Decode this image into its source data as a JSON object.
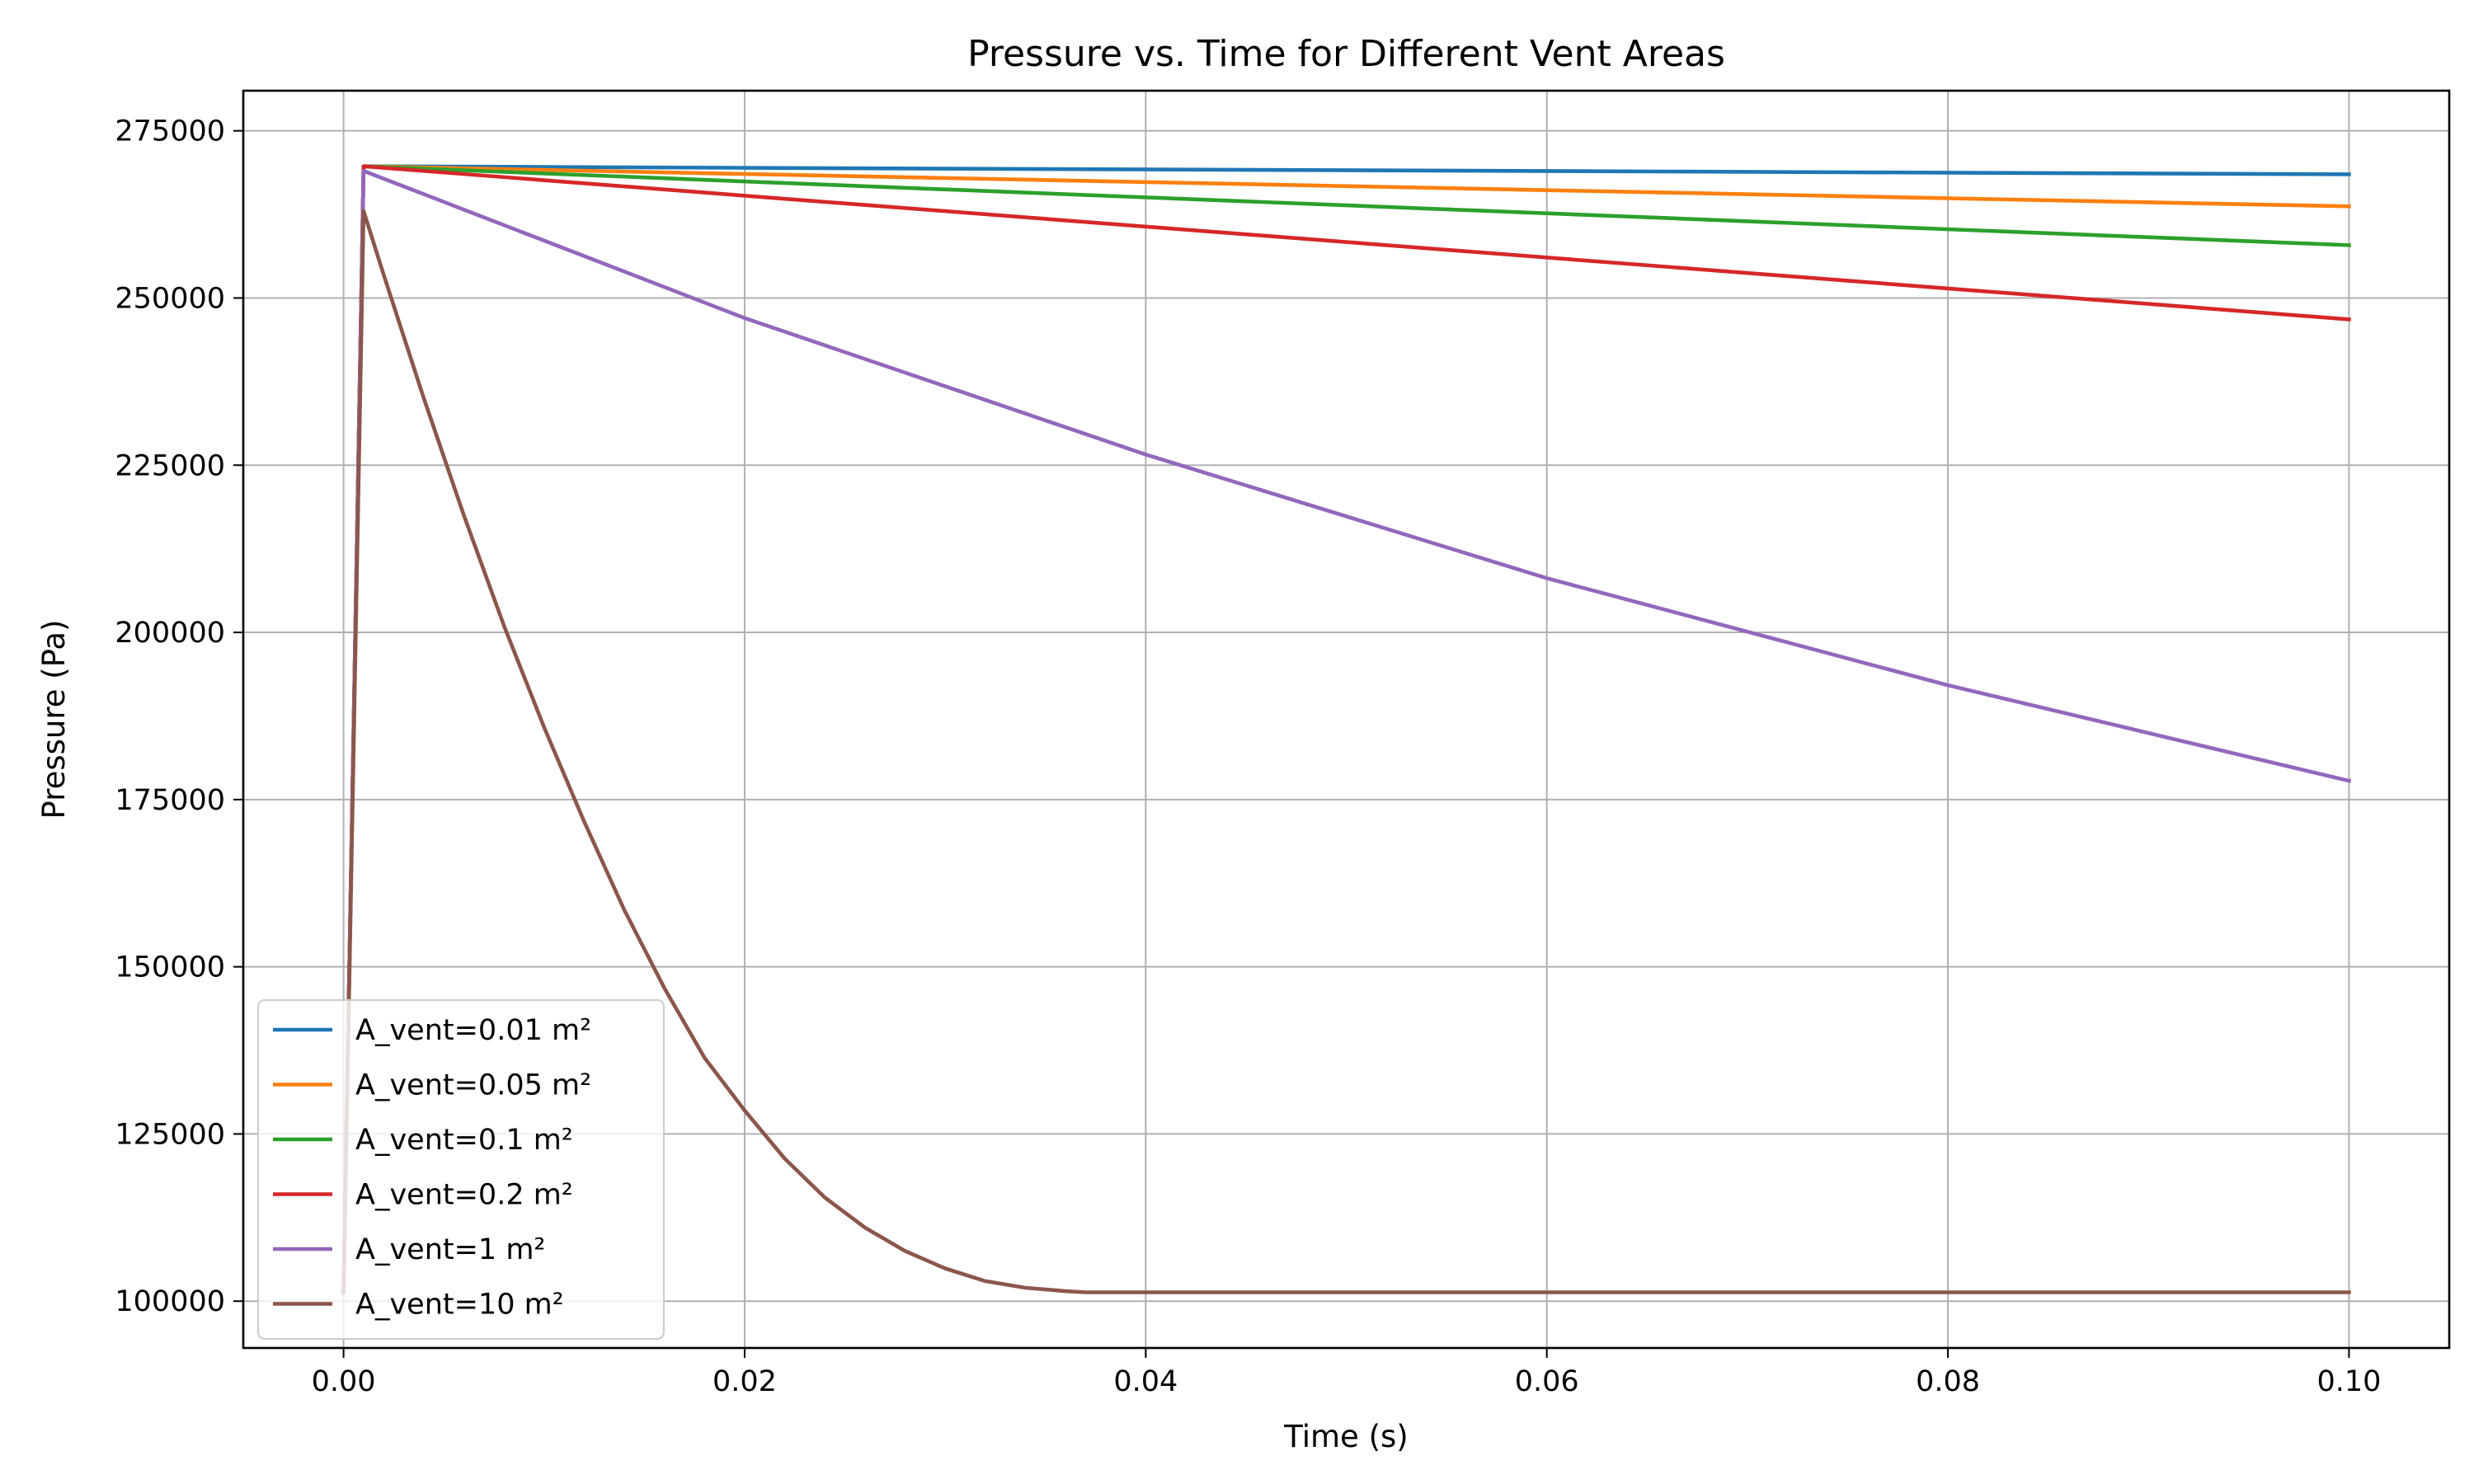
{
  "chart_data": {
    "type": "line",
    "title": "Pressure vs. Time for Different Vent Areas",
    "xlabel": "Time (s)",
    "ylabel": "Pressure (Pa)",
    "xlim": [
      -0.005,
      0.105
    ],
    "ylim": [
      93000,
      281000
    ],
    "xticks": [
      0.0,
      0.02,
      0.04,
      0.06,
      0.08,
      0.1
    ],
    "xtick_labels": [
      "0.00",
      "0.02",
      "0.04",
      "0.06",
      "0.08",
      "0.10"
    ],
    "yticks": [
      100000,
      125000,
      150000,
      175000,
      200000,
      225000,
      250000,
      275000
    ],
    "ytick_labels": [
      "100000",
      "125000",
      "150000",
      "175000",
      "200000",
      "225000",
      "250000",
      "275000"
    ],
    "grid": true,
    "legend_position": "lower-left",
    "series": [
      {
        "name": "A_vent=0.01 m²",
        "color": "#1f77b4",
        "x": [
          0.0,
          0.001,
          0.1
        ],
        "y": [
          101325,
          269700,
          268500
        ]
      },
      {
        "name": "A_vent=0.05 m²",
        "color": "#ff7f0e",
        "x": [
          0.0,
          0.001,
          0.1
        ],
        "y": [
          101325,
          269700,
          263700
        ]
      },
      {
        "name": "A_vent=0.1 m²",
        "color": "#2ca02c",
        "x": [
          0.0,
          0.001,
          0.1
        ],
        "y": [
          101325,
          269700,
          257900
        ]
      },
      {
        "name": "A_vent=0.2 m²",
        "color": "#d62728",
        "x": [
          0.0,
          0.001,
          0.1
        ],
        "y": [
          101325,
          269700,
          246800
        ]
      },
      {
        "name": "A_vent=1 m²",
        "color": "#9467bd",
        "x": [
          0.0,
          0.001,
          0.02,
          0.04,
          0.06,
          0.08,
          0.1
        ],
        "y": [
          101325,
          269000,
          247000,
          226600,
          208100,
          192100,
          177800
        ]
      },
      {
        "name": "A_vent=10 m²",
        "color": "#8c564b",
        "x": [
          0.0,
          0.001,
          0.002,
          0.004,
          0.006,
          0.008,
          0.01,
          0.012,
          0.014,
          0.016,
          0.018,
          0.02,
          0.022,
          0.024,
          0.026,
          0.028,
          0.03,
          0.032,
          0.034,
          0.036,
          0.037,
          0.04,
          0.06,
          0.08,
          0.1
        ],
        "y": [
          101325,
          263000,
          253500,
          235000,
          217500,
          201000,
          185800,
          171700,
          158500,
          146800,
          136400,
          128500,
          121300,
          115500,
          111000,
          107500,
          104900,
          103000,
          102000,
          101500,
          101325,
          101325,
          101325,
          101325,
          101325
        ]
      }
    ]
  }
}
